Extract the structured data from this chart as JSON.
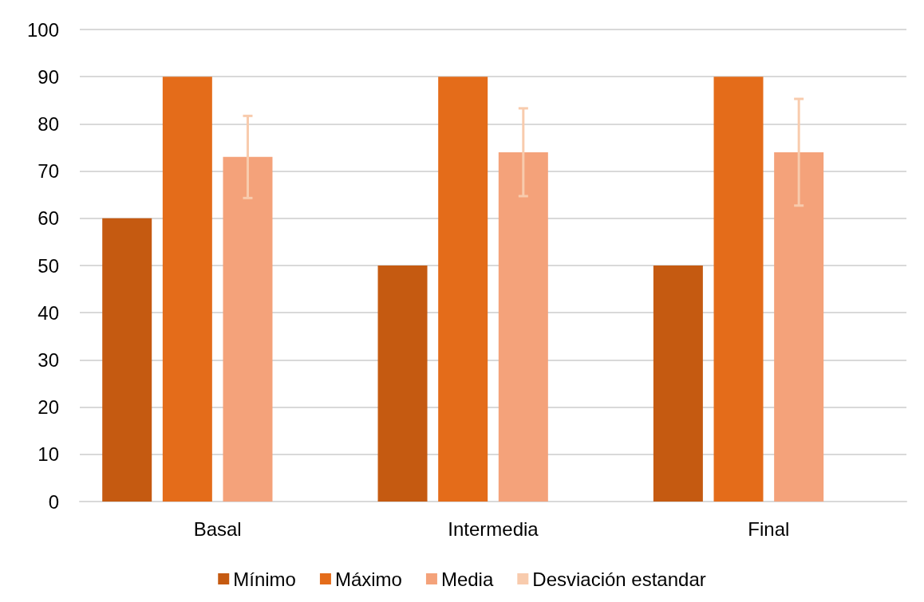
{
  "chart_data": {
    "type": "bar",
    "categories": [
      "Basal",
      "Intermedia",
      "Final"
    ],
    "series": [
      {
        "name": "Mínimo",
        "color": "#c55a11",
        "values": [
          60,
          50,
          50
        ]
      },
      {
        "name": "Máximo",
        "color": "#e46c1a",
        "values": [
          90,
          90,
          90
        ]
      },
      {
        "name": "Media",
        "color": "#f4a27a",
        "values": [
          73,
          74,
          74
        ],
        "errors": [
          8.7,
          9.3,
          11.3
        ]
      },
      {
        "name": "Desviación estandar",
        "color": "#f8cbad",
        "values": [
          null,
          null,
          null
        ]
      }
    ],
    "ylim": [
      0,
      100
    ],
    "yticks": [
      0,
      10,
      20,
      30,
      40,
      50,
      60,
      70,
      80,
      90,
      100
    ],
    "grid": "y",
    "legend": "bottom"
  }
}
